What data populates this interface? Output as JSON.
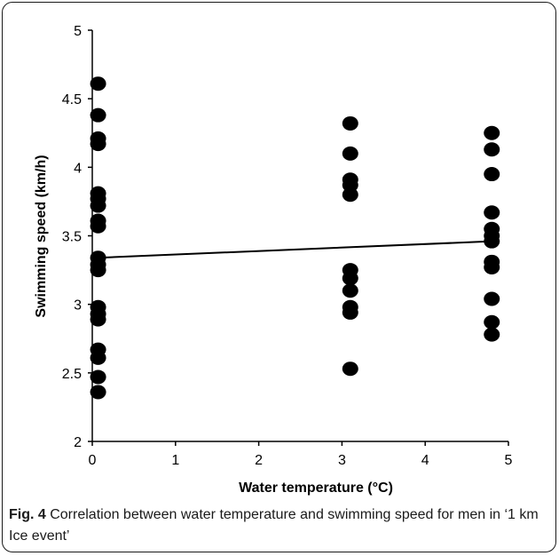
{
  "chart_data": {
    "type": "scatter",
    "xlabel": "Water temperature (°C)",
    "ylabel": "Swimming speed (km/h)",
    "xlim": [
      0,
      5
    ],
    "ylim": [
      2,
      5
    ],
    "x_ticks": [
      "0",
      "1",
      "2",
      "3",
      "4",
      "5"
    ],
    "y_ticks": [
      "2",
      "2.5",
      "3",
      "3.5",
      "4",
      "4.5",
      "5"
    ],
    "grid": false,
    "marker_color": "#000000",
    "series": [
      {
        "points": [
          [
            0.07,
            4.61
          ],
          [
            0.07,
            4.38
          ],
          [
            0.07,
            4.21
          ],
          [
            0.07,
            4.17
          ],
          [
            0.07,
            3.81
          ],
          [
            0.07,
            3.77
          ],
          [
            0.07,
            3.72
          ],
          [
            0.07,
            3.61
          ],
          [
            0.07,
            3.57
          ],
          [
            0.07,
            3.34
          ],
          [
            0.07,
            3.29
          ],
          [
            0.07,
            3.25
          ],
          [
            0.07,
            2.98
          ],
          [
            0.07,
            2.93
          ],
          [
            0.07,
            2.89
          ],
          [
            0.07,
            2.67
          ],
          [
            0.07,
            2.61
          ],
          [
            0.07,
            2.47
          ],
          [
            0.07,
            2.36
          ],
          [
            3.1,
            4.32
          ],
          [
            3.1,
            4.1
          ],
          [
            3.1,
            3.91
          ],
          [
            3.1,
            3.87
          ],
          [
            3.1,
            3.8
          ],
          [
            3.1,
            3.25
          ],
          [
            3.1,
            3.19
          ],
          [
            3.1,
            3.1
          ],
          [
            3.1,
            2.98
          ],
          [
            3.1,
            2.94
          ],
          [
            3.1,
            2.53
          ],
          [
            4.8,
            4.25
          ],
          [
            4.8,
            4.13
          ],
          [
            4.8,
            3.95
          ],
          [
            4.8,
            3.67
          ],
          [
            4.8,
            3.55
          ],
          [
            4.8,
            3.5
          ],
          [
            4.8,
            3.46
          ],
          [
            4.8,
            3.31
          ],
          [
            4.8,
            3.27
          ],
          [
            4.8,
            3.04
          ],
          [
            4.8,
            2.87
          ],
          [
            4.8,
            2.78
          ]
        ]
      }
    ],
    "trendline": {
      "x": [
        0.07,
        4.8
      ],
      "y": [
        3.34,
        3.46
      ]
    }
  },
  "caption": {
    "label": "Fig. 4",
    "text": " Correlation between water temperature and swimming speed for men in ‘1 km Ice event’"
  }
}
